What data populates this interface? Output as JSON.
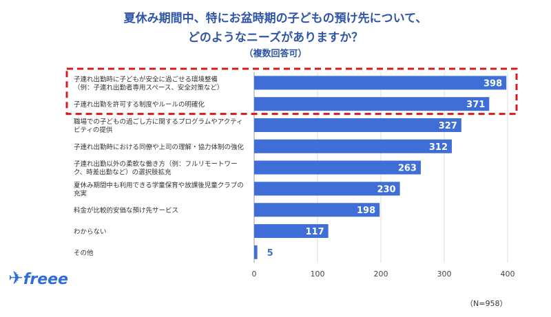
{
  "title_line1": "夏休み期間中、特にお盆時期の子どもの預け先について、",
  "title_line2": "どのようなニーズがありますか？",
  "subtitle": "（複数回答可）",
  "note": "（N=958）",
  "logo_text": "freee",
  "colors": {
    "bar": "#3f6fd6",
    "highlight": "#d7191c",
    "title": "#2f55a8"
  },
  "chart_data": {
    "type": "bar",
    "orientation": "horizontal",
    "categories": [
      "子連れ出勤時に子どもが安全に過ごせる環境整備\n（例：子連れ出勤者専用スペース、安全対策など）",
      "子連れ出勤を許可する制度やルールの明確化",
      "職場での子どもの過ごし方に関するプログラムやアクティ\nビティの提供",
      "子連れ出勤時における同僚や上司の理解・協力体制の強化",
      "子連れ出勤以外の柔軟な働き方（例：フルリモートワー\nク、時差出勤など）の選択肢拡充",
      "夏休み期間中も利用できる学童保育や放課後児童クラブの\n充実",
      "料金が比較的安価な預け先サービス",
      "わからない",
      "その他"
    ],
    "values": [
      398,
      371,
      327,
      312,
      263,
      230,
      198,
      117,
      5
    ],
    "xlim": [
      0,
      400
    ],
    "xticks": [
      "0",
      "100",
      "200",
      "300",
      "400"
    ],
    "grid": true,
    "highlighted_categories": [
      0,
      1
    ]
  }
}
